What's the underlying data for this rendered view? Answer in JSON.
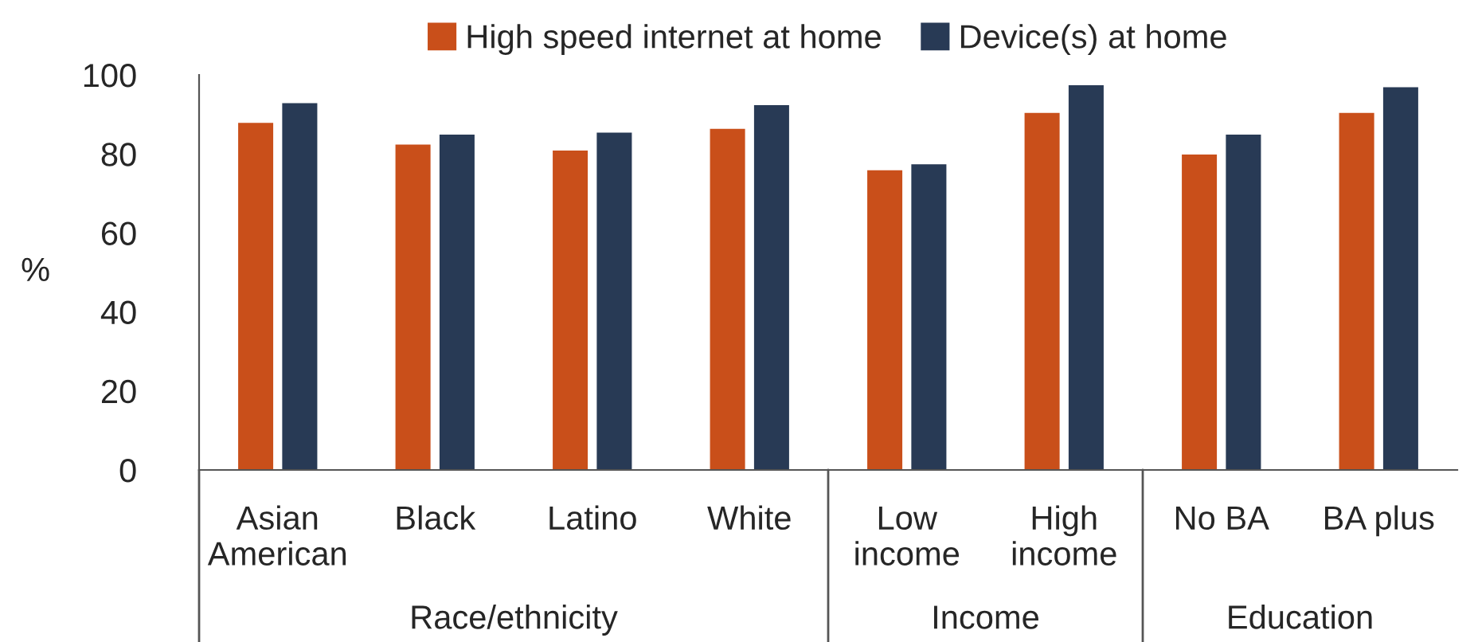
{
  "chart_data": {
    "type": "bar",
    "ylabel": "%",
    "categories": [
      "Asian\nAmerican",
      "Black",
      "Latino",
      "White",
      "Low\nincome",
      "High\nincome",
      "No BA",
      "BA plus"
    ],
    "series": [
      {
        "name": "High speed internet at home",
        "color": "#c94f1a",
        "values": [
          88,
          82.5,
          81,
          86.5,
          76,
          90.5,
          80,
          90.5
        ]
      },
      {
        "name": "Device(s) at home",
        "color": "#283a55",
        "values": [
          93,
          85,
          85.5,
          92.5,
          77.5,
          97.5,
          85,
          97
        ]
      }
    ],
    "ylim": [
      0,
      100
    ],
    "yticks": [
      0,
      20,
      40,
      60,
      80,
      100
    ],
    "grid": false,
    "legend": "top",
    "annotations": [
      "Race/ethnicity",
      "Income",
      "Education"
    ]
  }
}
